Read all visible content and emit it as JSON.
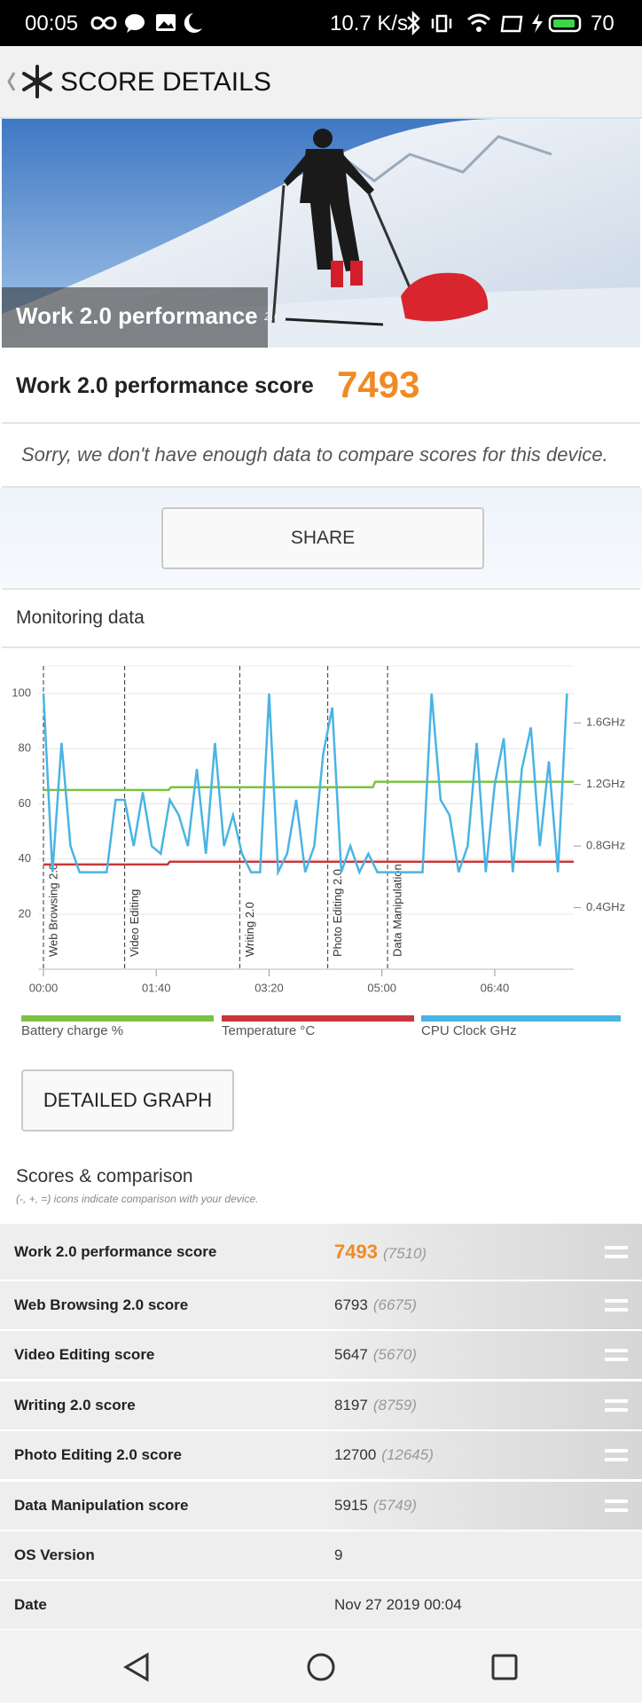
{
  "status_bar": {
    "time": "00:05",
    "speed": "10.7 K/s",
    "battery": "70"
  },
  "app_bar": {
    "title": "SCORE DETAILS"
  },
  "hero": {
    "title": "Work 2.0 performance",
    "version": "2.0"
  },
  "score": {
    "label": "Work 2.0 performance score",
    "value": "7493"
  },
  "notice": "Sorry, we don't have enough data to compare scores for this device.",
  "share_button": "SHARE",
  "monitoring": {
    "title": "Monitoring data",
    "chart": {
      "type": "line",
      "xlim": [
        0,
        470
      ],
      "xticks": [
        {
          "value": 0,
          "label": "00:00"
        },
        {
          "value": 100,
          "label": "01:40"
        },
        {
          "value": 200,
          "label": "03:20"
        },
        {
          "value": 300,
          "label": "05:00"
        },
        {
          "value": 400,
          "label": "06:40"
        }
      ],
      "ylim": [
        0,
        110
      ],
      "yticks": [
        20,
        40,
        60,
        80,
        100
      ],
      "y2lim": [
        0,
        1.97
      ],
      "y2ticks": [
        {
          "value": 0.4,
          "label": "0.4GHz"
        },
        {
          "value": 0.8,
          "label": "0.8GHz"
        },
        {
          "value": 1.2,
          "label": "1.2GHz"
        },
        {
          "value": 1.6,
          "label": "1.6GHz"
        }
      ],
      "grid": true,
      "sections": [
        {
          "x": 0,
          "label": "Web Browsing 2.0"
        },
        {
          "x": 72,
          "label": "Video Editing"
        },
        {
          "x": 174,
          "label": "Writing 2.0"
        },
        {
          "x": 252,
          "label": "Photo Editing 2.0"
        },
        {
          "x": 305,
          "label": "Data Manipulation"
        }
      ],
      "series": [
        {
          "name": "Battery charge %",
          "color": "#7cc242",
          "x": [
            0,
            111,
            113,
            292,
            294,
            470
          ],
          "values": [
            65,
            65,
            66,
            66,
            68,
            68
          ]
        },
        {
          "name": "Temperature °C",
          "color": "#c9363a",
          "x": [
            0,
            110,
            112,
            470
          ],
          "values": [
            38,
            38,
            39,
            39
          ]
        },
        {
          "name": "CPU Clock GHz",
          "color": "#4ab4e3",
          "axis": "y2",
          "x": [
            0,
            8,
            16,
            24,
            32,
            40,
            48,
            56,
            64,
            72,
            80,
            88,
            96,
            104,
            112,
            120,
            128,
            136,
            144,
            152,
            160,
            168,
            176,
            184,
            192,
            200,
            208,
            216,
            224,
            232,
            240,
            248,
            256,
            264,
            272,
            280,
            288,
            296,
            304,
            312,
            320,
            328,
            336,
            344,
            352,
            360,
            368,
            376,
            384,
            392,
            400,
            408,
            416,
            424,
            432,
            440,
            448,
            456,
            464
          ],
          "values": [
            1.79,
            0.63,
            1.47,
            0.8,
            0.63,
            0.63,
            0.63,
            0.63,
            1.1,
            1.1,
            0.8,
            1.15,
            0.8,
            0.75,
            1.1,
            1.0,
            0.8,
            1.3,
            0.75,
            1.47,
            0.8,
            1.0,
            0.75,
            0.63,
            0.63,
            1.79,
            0.63,
            0.75,
            1.1,
            0.63,
            0.8,
            1.4,
            1.7,
            0.63,
            0.8,
            0.63,
            0.75,
            0.63,
            0.63,
            0.63,
            0.63,
            0.63,
            0.63,
            1.79,
            1.1,
            1.0,
            0.63,
            0.8,
            1.47,
            0.63,
            1.2,
            1.5,
            0.63,
            1.3,
            1.57,
            0.8,
            1.35,
            0.63,
            1.79
          ]
        }
      ]
    },
    "button": "DETAILED GRAPH"
  },
  "scores": {
    "title": "Scores & comparison",
    "subtitle": "(-, +, =) icons indicate comparison with your device.",
    "rows": [
      {
        "label": "Work 2.0 performance score",
        "value": "7493",
        "compare": "(7510)"
      },
      {
        "label": "Web Browsing 2.0 score",
        "value": "6793",
        "compare": "(6675)"
      },
      {
        "label": "Video Editing score",
        "value": "5647",
        "compare": "(5670)"
      },
      {
        "label": "Writing 2.0 score",
        "value": "8197",
        "compare": "(8759)"
      },
      {
        "label": "Photo Editing 2.0 score",
        "value": "12700",
        "compare": "(12645)"
      },
      {
        "label": "Data Manipulation score",
        "value": "5915",
        "compare": "(5749)"
      },
      {
        "label": "OS Version",
        "value": "9"
      },
      {
        "label": "Date",
        "value": "Nov 27 2019 00:04"
      }
    ]
  }
}
